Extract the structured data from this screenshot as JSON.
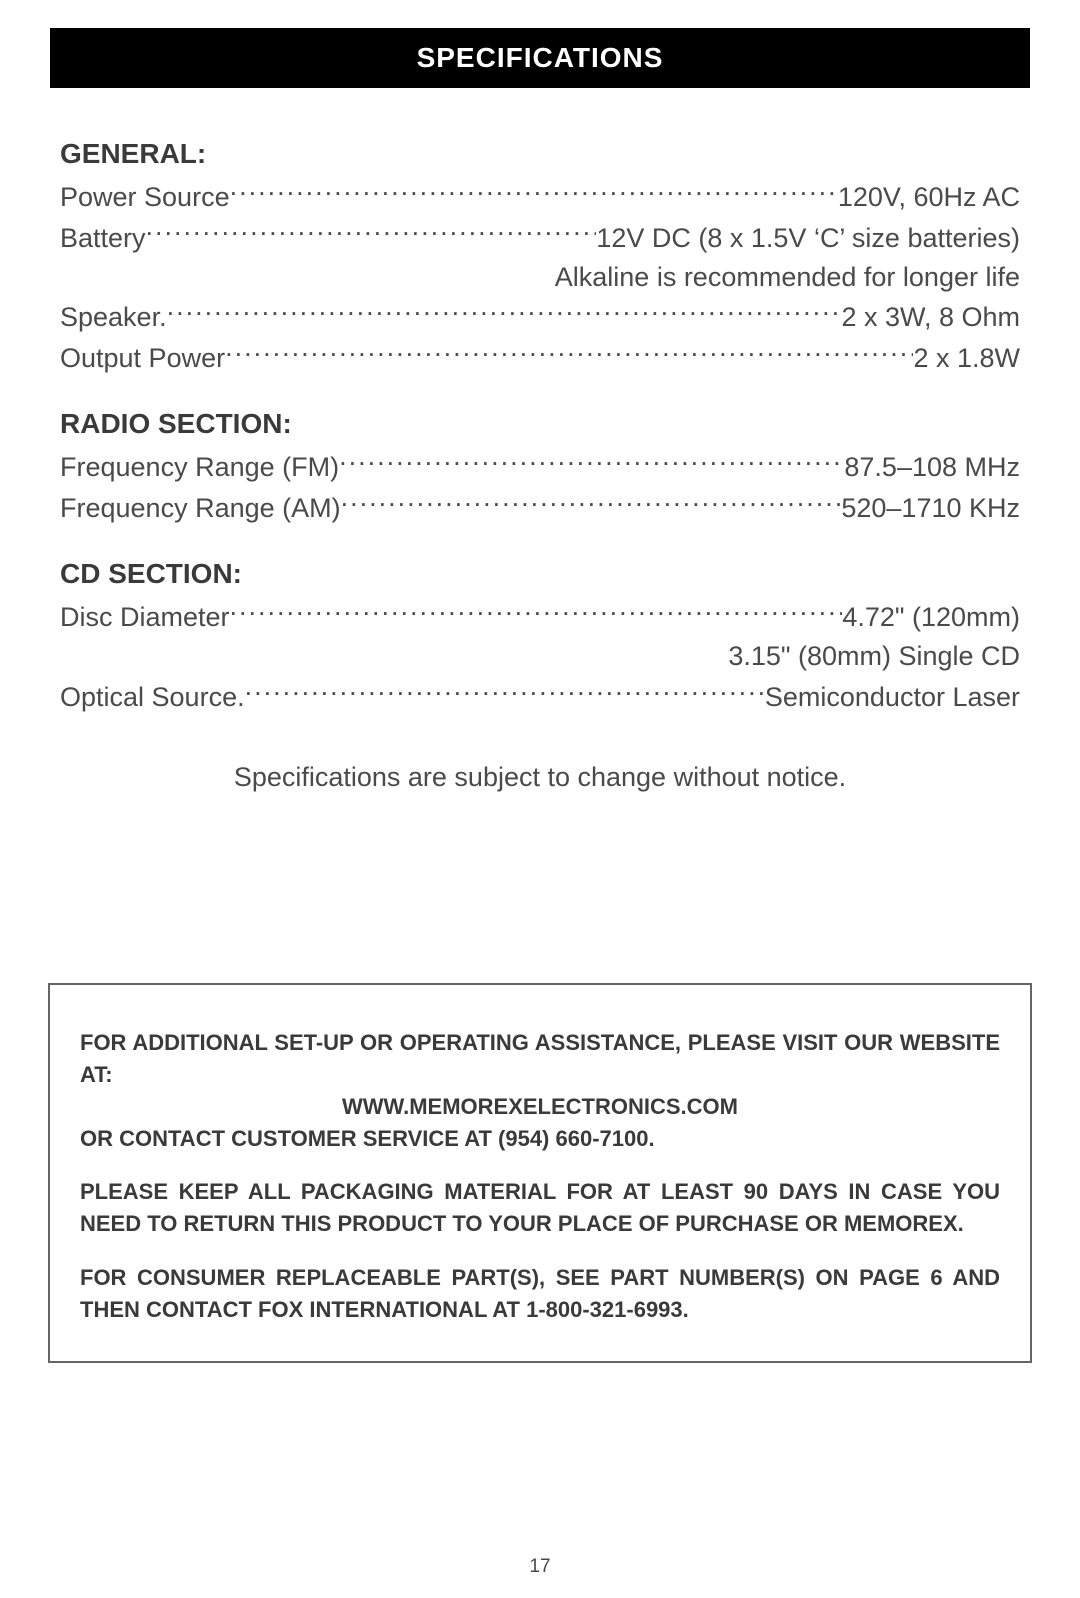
{
  "header": "SPECIFICATIONS",
  "sections": {
    "general": {
      "title": "GENERAL:",
      "rows": [
        {
          "label": "Power Source ",
          "value": "120V, 60Hz AC"
        },
        {
          "label": "Battery",
          "value": "12V DC (8 x 1.5V ‘C’ size batteries)"
        },
        {
          "continuation": "Alkaline is recommended for longer life"
        },
        {
          "label": "Speaker.",
          "value": "2 x 3W, 8 Ohm"
        },
        {
          "label": "Output Power ",
          "value": "2 x 1.8W"
        }
      ]
    },
    "radio": {
      "title": "RADIO SECTION:",
      "rows": [
        {
          "label": "Frequency Range (FM) ",
          "value": "87.5–108 MHz"
        },
        {
          "label": "Frequency Range (AM) ",
          "value": "520–1710 KHz"
        }
      ]
    },
    "cd": {
      "title": "CD SECTION:",
      "rows": [
        {
          "label": "Disc Diameter ",
          "value": "4.72\" (120mm)"
        },
        {
          "continuation": "3.15\" (80mm) Single CD"
        },
        {
          "label": "Optical Source. ",
          "value": "Semiconductor Laser"
        }
      ]
    }
  },
  "notice": "Specifications are subject to change without notice.",
  "infobox": {
    "p1a": "FOR ADDITIONAL SET-UP OR OPERATING ASSISTANCE, PLEASE VISIT OUR WEBSITE AT:",
    "website": "WWW.MEMOREXELECTRONICS.COM",
    "p1b": "OR CONTACT CUSTOMER SERVICE AT (954) 660-7100.",
    "p2": "PLEASE KEEP ALL PACKAGING MATERIAL FOR AT LEAST 90 DAYS IN CASE YOU NEED TO RETURN THIS PRODUCT  TO YOUR PLACE OF PURCHASE OR MEMOREX.",
    "p3": "FOR CONSUMER REPLACEABLE PART(S), SEE PART NUMBER(S) ON PAGE 6 AND THEN CONTACT FOX INTERNATIONAL AT 1-800-321-6993."
  },
  "pageNumber": "17"
}
